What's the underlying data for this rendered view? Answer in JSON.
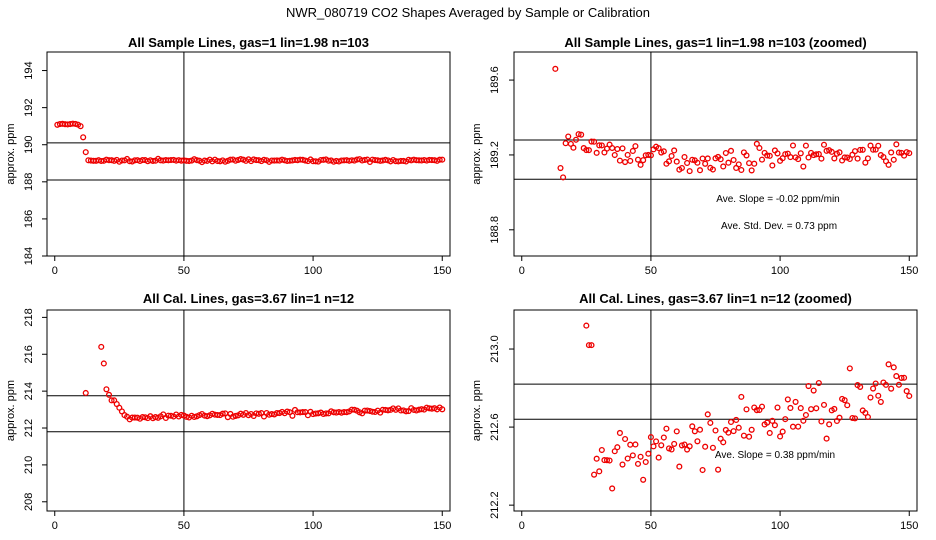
{
  "page_title": "NWR_080719  CO2 Shapes Averaged by Sample or Calibration",
  "colors": {
    "points": "#ee0000",
    "lines": "#000000"
  },
  "chart_data": [
    {
      "type": "scatter",
      "title": "All Sample Lines, gas=1 lin=1.98 n=103",
      "xlabel": "",
      "ylabel": "approx. ppm",
      "xlim": [
        -3,
        153
      ],
      "ylim": [
        184,
        195
      ],
      "xticks": [
        0,
        50,
        100,
        150
      ],
      "yticks": [
        184,
        186,
        188,
        190,
        192,
        194
      ],
      "vline": 50,
      "hlines": [
        188.1,
        190.1
      ],
      "sample_note": "x = 1..150; y = 191.1 for x<=9, then drop to ~189.1 with ~0.1 noise"
    },
    {
      "type": "scatter",
      "title": "All Sample Lines, gas=1 lin=1.98 n=103 (zoomed)",
      "xlabel": "",
      "ylabel": "approx. ppm",
      "xlim": [
        -3,
        153
      ],
      "ylim": [
        188.66,
        189.75
      ],
      "xticks": [
        0,
        50,
        100,
        150
      ],
      "yticks": [
        188.8,
        189.2,
        189.6
      ],
      "vline": 50,
      "hlines": [
        189.07,
        189.28
      ],
      "annotations": [
        "Ave. Slope =  -0.02  ppm/min",
        "Ave. Std. Dev. =  0.73  ppm"
      ]
    },
    {
      "type": "scatter",
      "title": "All Cal. Lines, gas=3.67 lin=1 n=12",
      "xlabel": "",
      "ylabel": "approx. ppm",
      "xlim": [
        -3,
        153
      ],
      "ylim": [
        207.5,
        218.4
      ],
      "xticks": [
        0,
        50,
        100,
        150
      ],
      "yticks": [
        208,
        210,
        212,
        214,
        216,
        218
      ],
      "vline": 50,
      "hlines": [
        211.8,
        213.75
      ]
    },
    {
      "type": "scatter",
      "title": "All Cal. Lines, gas=3.67 lin=1 n=12 (zoomed)",
      "xlabel": "",
      "ylabel": "approx. ppm",
      "xlim": [
        -3,
        153
      ],
      "ylim": [
        212.17,
        213.2
      ],
      "xticks": [
        0,
        50,
        100,
        150
      ],
      "yticks": [
        212.2,
        212.6,
        213.0
      ],
      "vline": 50,
      "hlines": [
        212.64,
        212.82
      ],
      "annotations": [
        "Ave. Slope =  0.38  ppm/min"
      ]
    }
  ]
}
